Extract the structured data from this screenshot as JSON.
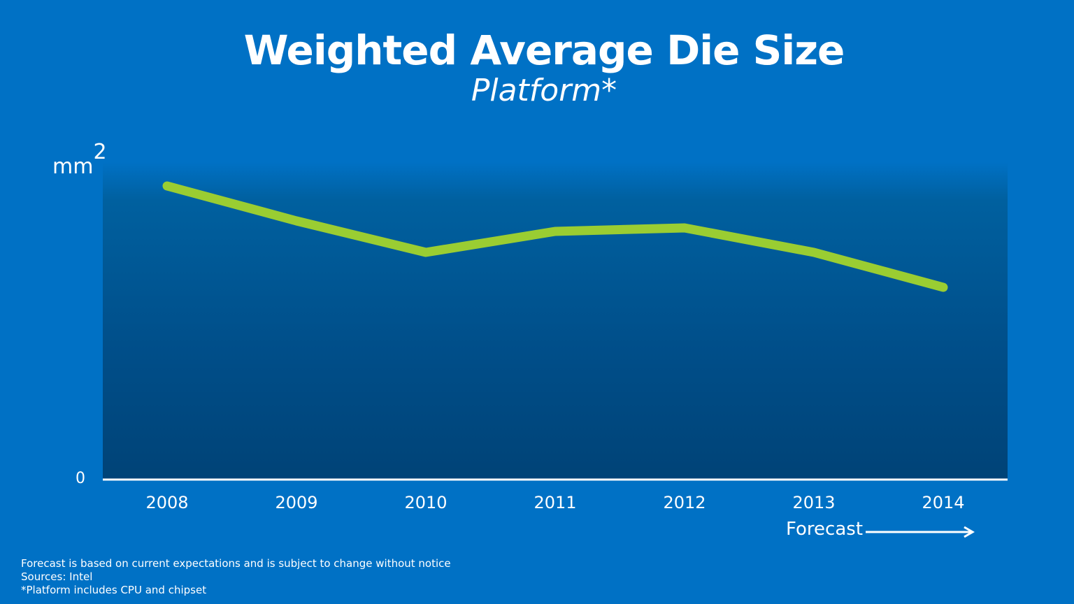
{
  "chart_data": {
    "type": "line",
    "title": "Weighted Average Die Size",
    "subtitle": "Platform*",
    "ylabel": "mm",
    "ylabel_superscript": "2",
    "ytick_zero": "0",
    "categories": [
      "2008",
      "2009",
      "2010",
      "2011",
      "2012",
      "2013",
      "2014"
    ],
    "series": [
      {
        "values": [
          0.84,
          0.74,
          0.65,
          0.71,
          0.72,
          0.65,
          0.55
        ],
        "color": "#9acd32"
      }
    ],
    "ylim": [
      0,
      1
    ],
    "grid": false,
    "annotation": "Forecast"
  },
  "footnotes": [
    "Forecast is based on current expectations and is subject to change without notice",
    "Sources: Intel",
    "*Platform includes CPU and chipset"
  ],
  "colors": {
    "background": "#0071c5",
    "line": "#9acd32",
    "axis": "#ffffff"
  }
}
